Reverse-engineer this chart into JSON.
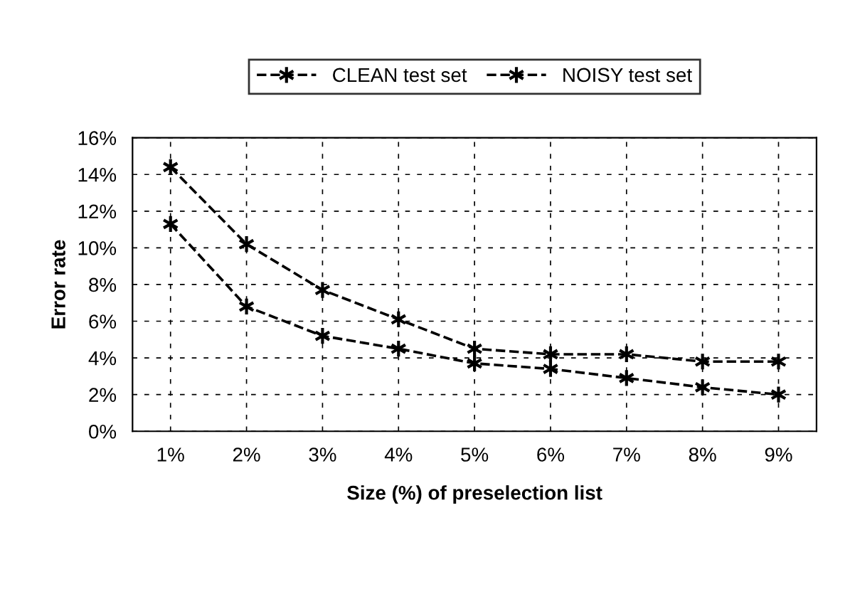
{
  "chart_data": {
    "type": "line",
    "xlabel": "Size (%) of preselection list",
    "ylabel": "Error rate",
    "categories": [
      "1%",
      "2%",
      "3%",
      "4%",
      "5%",
      "6%",
      "7%",
      "8%",
      "9%"
    ],
    "series": [
      {
        "name": "CLEAN test set",
        "color": "#000000",
        "marker": "cross",
        "line_style": "dashed",
        "values": [
          11.3,
          6.8,
          5.2,
          4.5,
          3.7,
          3.4,
          2.9,
          2.4,
          2.0
        ]
      },
      {
        "name": "NOISY test set",
        "color": "#000000",
        "marker": "cross",
        "line_style": "dashed",
        "values": [
          14.4,
          10.2,
          7.7,
          6.1,
          4.5,
          4.2,
          4.2,
          3.8,
          3.8
        ]
      }
    ],
    "ylim": [
      0,
      16
    ],
    "yticks": [
      {
        "value": 0,
        "label": "0%"
      },
      {
        "value": 2,
        "label": "2%"
      },
      {
        "value": 4,
        "label": "4%"
      },
      {
        "value": 6,
        "label": "6%"
      },
      {
        "value": 8,
        "label": "8%"
      },
      {
        "value": 10,
        "label": "10%"
      },
      {
        "value": 12,
        "label": "12%"
      },
      {
        "value": 14,
        "label": "14%"
      },
      {
        "value": 16,
        "label": "16%"
      }
    ],
    "grid": true,
    "legend": "top"
  }
}
